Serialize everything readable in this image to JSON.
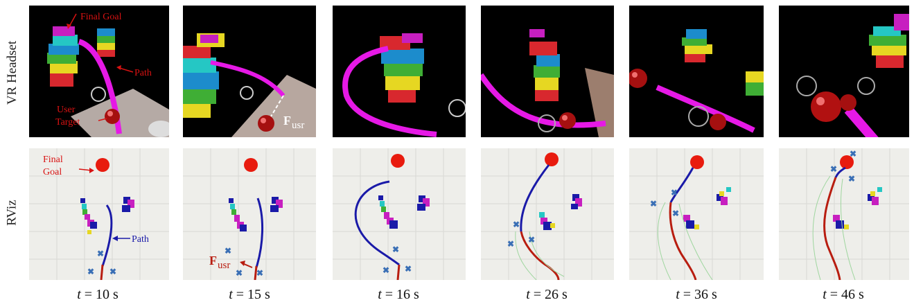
{
  "row_labels": {
    "vr": "VR Headset",
    "rviz": "RViz"
  },
  "annotations": {
    "final_goal_vr": "Final Goal",
    "path_vr": "Path",
    "user_target_line1": "User",
    "user_target_line2": "Target",
    "force_symbol": "F",
    "force_subscript": "usr",
    "final_goal_rviz_line1": "Final",
    "final_goal_rviz_line2": "Goal",
    "path_rviz": "Path",
    "force_rviz_symbol": "F",
    "force_rviz_subscript": "usr"
  },
  "time_labels": [
    {
      "var": "t",
      "eq": "= 10 s"
    },
    {
      "var": "t",
      "eq": "= 15 s"
    },
    {
      "var": "t",
      "eq": "= 16 s"
    },
    {
      "var": "t",
      "eq": "= 26 s"
    },
    {
      "var": "t",
      "eq": "= 36 s"
    },
    {
      "var": "t",
      "eq": "= 46 s"
    }
  ],
  "colors": {
    "vr_background": "#000000",
    "path_magenta": "#e619e6",
    "rviz_background": "#eeeeea",
    "planned_path_blue": "#1a1aa8",
    "executed_path_red": "#b81d10",
    "goal_red": "#e81b0e",
    "annotation_red": "#d81212",
    "marker_blue": "#3a6fb5"
  }
}
